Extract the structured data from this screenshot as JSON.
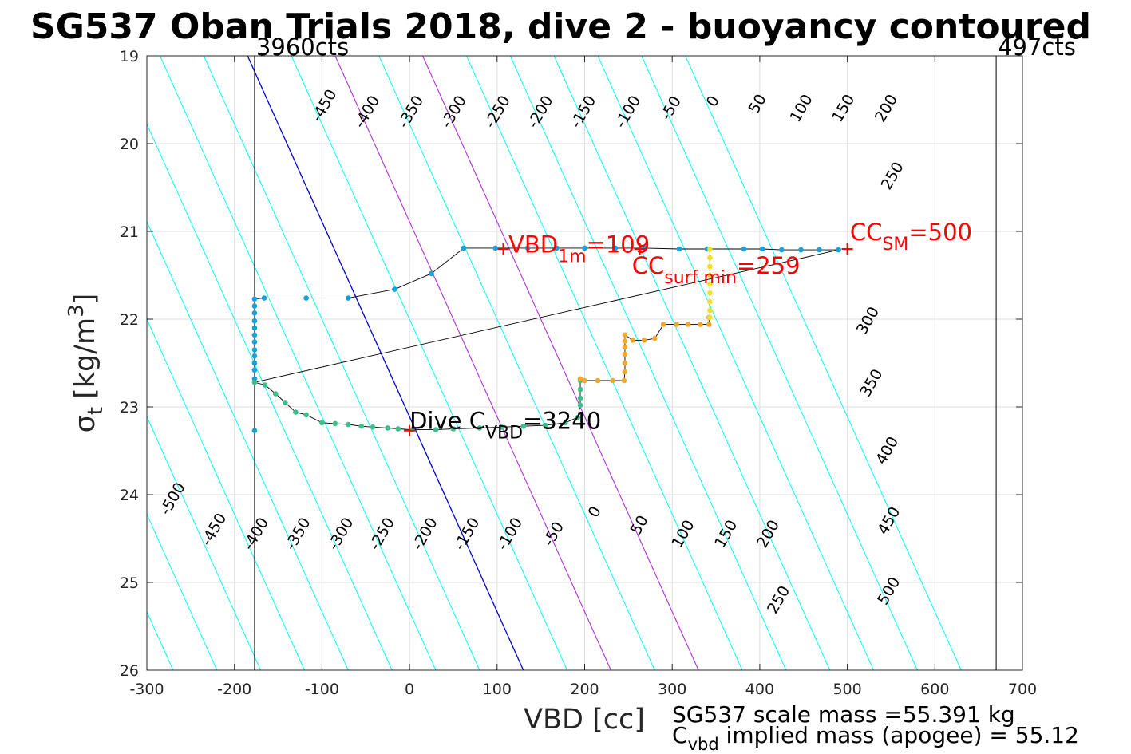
{
  "chart_data": {
    "type": "scatter",
    "title": "SG537 Oban Trials 2018, dive 2 - buoyancy contoured",
    "xlabel": "VBD [cc]",
    "ylabel": "σ",
    "ylabel_sub": "t",
    "ylabel_units": "[kg/m",
    "ylabel_sup": "3",
    "ylabel_close": "]",
    "xlim": [
      -300,
      700
    ],
    "ylim": [
      19,
      26
    ],
    "y_reversed": true,
    "grid": true,
    "x_ticks": [
      -300,
      -200,
      -100,
      0,
      100,
      200,
      300,
      400,
      500,
      600,
      700
    ],
    "x_tick_labels": [
      "-300",
      "-200",
      "-100",
      "0",
      "100",
      "200",
      "300",
      "400",
      "500",
      "600",
      "700"
    ],
    "y_ticks": [
      19,
      20,
      21,
      22,
      23,
      24,
      25,
      26
    ],
    "y_tick_labels": [
      "19",
      "20",
      "21",
      "22",
      "23",
      "24",
      "25",
      "26"
    ],
    "contours": {
      "levels": [
        -500,
        -450,
        -400,
        -350,
        -300,
        -250,
        -200,
        -150,
        -100,
        -50,
        0,
        50,
        100,
        150,
        200,
        250,
        300,
        350,
        400,
        450,
        500
      ],
      "neutral_vbd_at_top": -185,
      "neutral_vbd_at_bottom": 130,
      "spacing_cc": 50,
      "color_default": "#00ffff",
      "color_zero": "#0000cc",
      "color_special": "#b030d8",
      "special_levels": [
        100,
        200
      ],
      "labels_top": [
        {
          "text": "-450",
          "x": -97,
          "y": 19.57
        },
        {
          "text": "-400",
          "x": -48,
          "y": 19.64
        },
        {
          "text": "-350",
          "x": 2,
          "y": 19.64
        },
        {
          "text": "-300",
          "x": 51,
          "y": 19.64
        },
        {
          "text": "-250",
          "x": 101,
          "y": 19.64
        },
        {
          "text": "-200",
          "x": 150,
          "y": 19.64
        },
        {
          "text": "-150",
          "x": 199,
          "y": 19.64
        },
        {
          "text": "-100",
          "x": 250,
          "y": 19.64
        },
        {
          "text": "-50",
          "x": 299,
          "y": 19.6
        },
        {
          "text": "0",
          "x": 347,
          "y": 19.52
        },
        {
          "text": "50",
          "x": 398,
          "y": 19.55
        },
        {
          "text": "100",
          "x": 448,
          "y": 19.6
        },
        {
          "text": "150",
          "x": 496,
          "y": 19.6
        },
        {
          "text": "200",
          "x": 545,
          "y": 19.6
        }
      ],
      "labels_right": [
        {
          "text": "250",
          "x": 552,
          "y": 20.37
        },
        {
          "text": "300",
          "x": 524,
          "y": 22.02
        },
        {
          "text": "350",
          "x": 528,
          "y": 22.73
        },
        {
          "text": "400",
          "x": 546,
          "y": 23.5
        },
        {
          "text": "450",
          "x": 548,
          "y": 24.3
        },
        {
          "text": "500",
          "x": 548,
          "y": 25.1
        }
      ],
      "labels_bottom": [
        {
          "text": "-500",
          "x": -270,
          "y": 24.05
        },
        {
          "text": "-450",
          "x": -223,
          "y": 24.4
        },
        {
          "text": "-400",
          "x": -175,
          "y": 24.45
        },
        {
          "text": "-350",
          "x": -127,
          "y": 24.45
        },
        {
          "text": "-300",
          "x": -78,
          "y": 24.45
        },
        {
          "text": "-250",
          "x": -31,
          "y": 24.45
        },
        {
          "text": "-200",
          "x": 18,
          "y": 24.45
        },
        {
          "text": "-150",
          "x": 66,
          "y": 24.45
        },
        {
          "text": "-100",
          "x": 115,
          "y": 24.45
        },
        {
          "text": "-50",
          "x": 165,
          "y": 24.45
        },
        {
          "text": "0",
          "x": 212,
          "y": 24.2
        },
        {
          "text": "50",
          "x": 263,
          "y": 24.35
        },
        {
          "text": "100",
          "x": 313,
          "y": 24.45
        },
        {
          "text": "150",
          "x": 362,
          "y": 24.45
        },
        {
          "text": "200",
          "x": 410,
          "y": 24.45
        },
        {
          "text": "250",
          "x": 422,
          "y": 25.2
        }
      ]
    },
    "vertical_lines": [
      {
        "x": -177,
        "label": "3960cts"
      },
      {
        "x": 670,
        "label": "497cts"
      }
    ],
    "series": [
      {
        "name": "",
        "points": [
          [
            -177,
            23.27
          ],
          [
            -177,
            22.68
          ],
          [
            -177,
            22.58
          ],
          [
            -177,
            22.5
          ],
          [
            -177,
            22.42
          ],
          [
            -177,
            22.35
          ],
          [
            -177,
            22.26
          ],
          [
            -177,
            22.18
          ],
          [
            -177,
            22.1
          ],
          [
            -177,
            22.02
          ],
          [
            -177,
            21.93
          ],
          [
            -177,
            21.85
          ],
          [
            -177,
            21.77
          ],
          [
            -166,
            21.76
          ],
          [
            -118,
            21.76
          ],
          [
            -70,
            21.76
          ],
          [
            -17,
            21.66
          ],
          [
            25,
            21.48
          ],
          [
            62,
            21.19
          ],
          [
            98,
            21.19
          ],
          [
            135,
            21.19
          ],
          [
            168,
            21.19
          ],
          [
            200,
            21.19
          ],
          [
            235,
            21.19
          ],
          [
            268,
            21.19
          ],
          [
            308,
            21.2
          ],
          [
            340,
            21.2
          ],
          [
            382,
            21.2
          ],
          [
            403,
            21.2
          ],
          [
            425,
            21.21
          ],
          [
            447,
            21.21
          ],
          [
            468,
            21.21
          ],
          [
            490,
            21.21
          ]
        ],
        "color": "#1aa0d8"
      },
      {
        "name": "",
        "points": [
          [
            -177,
            22.72
          ],
          [
            -165,
            22.75
          ],
          [
            -153,
            22.85
          ],
          [
            -142,
            22.95
          ],
          [
            -130,
            23.06
          ],
          [
            -118,
            23.09
          ],
          [
            -100,
            23.18
          ],
          [
            -85,
            23.19
          ],
          [
            -70,
            23.2
          ],
          [
            -55,
            23.22
          ],
          [
            -42,
            23.23
          ],
          [
            -25,
            23.24
          ],
          [
            -13,
            23.25
          ],
          [
            3,
            23.26
          ],
          [
            30,
            23.26
          ],
          [
            50,
            23.25
          ],
          [
            80,
            23.24
          ],
          [
            105,
            23.23
          ],
          [
            130,
            23.22
          ],
          [
            155,
            23.21
          ],
          [
            178,
            23.18
          ],
          [
            192,
            23.12
          ],
          [
            195,
            22.98
          ],
          [
            195,
            22.9
          ],
          [
            195,
            22.8
          ],
          [
            195,
            22.7
          ]
        ],
        "color": "#3cbf8a"
      },
      {
        "name": "",
        "points": [
          [
            195,
            22.68
          ],
          [
            200,
            22.7
          ],
          [
            215,
            22.7
          ],
          [
            232,
            22.7
          ],
          [
            245,
            22.7
          ],
          [
            246,
            22.6
          ],
          [
            246,
            22.5
          ],
          [
            246,
            22.4
          ],
          [
            246,
            22.32
          ],
          [
            246,
            22.25
          ],
          [
            246,
            22.18
          ],
          [
            255,
            22.24
          ],
          [
            268,
            22.24
          ],
          [
            280,
            22.22
          ],
          [
            290,
            22.06
          ],
          [
            305,
            22.06
          ],
          [
            318,
            22.06
          ],
          [
            332,
            22.06
          ],
          [
            342,
            22.06
          ],
          [
            342,
            21.98
          ]
        ],
        "color": "#f0a830"
      },
      {
        "name": "",
        "points": [
          [
            343,
            21.98
          ],
          [
            343,
            21.9
          ],
          [
            343,
            21.8
          ],
          [
            343,
            21.7
          ],
          [
            343,
            21.6
          ],
          [
            343,
            21.5
          ],
          [
            343,
            21.4
          ],
          [
            343,
            21.3
          ],
          [
            343,
            21.2
          ]
        ],
        "color": "#f0e020"
      }
    ],
    "markers": [
      {
        "x": 0,
        "y": 23.27,
        "color": "#ff0000"
      },
      {
        "x": 107,
        "y": 21.2,
        "color": "#ff0000"
      },
      {
        "x": 263,
        "y": 21.2,
        "color": "#ff0000"
      },
      {
        "x": 500,
        "y": 21.2,
        "color": "#ff0000"
      }
    ],
    "annotations": [
      {
        "id": "vbd1m",
        "main": "VBD",
        "sub": "1m",
        "value": "=109",
        "x": 113,
        "y": 21.24,
        "color": "#ff0000"
      },
      {
        "id": "ccsurf",
        "main": "CC",
        "sub": "surf min",
        "value": "=259",
        "x": 254,
        "y": 21.48,
        "color": "#ff0000"
      },
      {
        "id": "ccsm",
        "main": "CC",
        "sub": "SM",
        "value": "=500",
        "x": 503,
        "y": 21.1,
        "color": "#ff0000"
      },
      {
        "id": "dive",
        "main": "Dive C",
        "sub": "VBD",
        "value": "=3240",
        "x": 0,
        "y": 23.25,
        "color": "#000000"
      }
    ],
    "footer": {
      "line1": "SG537 scale mass =55.391 kg",
      "line2_main": "C",
      "line2_sub": "vbd",
      "line2_rest": " implied mass (apogee) = 55.12"
    }
  }
}
